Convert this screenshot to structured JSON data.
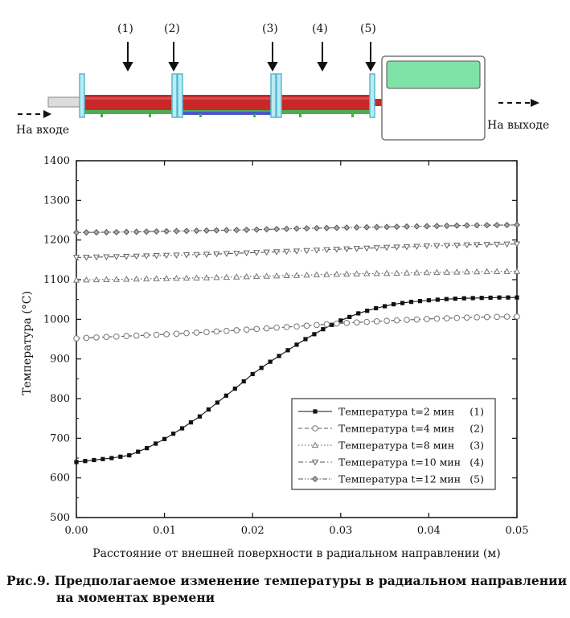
{
  "diagram": {
    "markers": [
      "(1)",
      "(2)",
      "(3)",
      "(4)",
      "(5)"
    ],
    "inlet_label": "На входе",
    "outlet_label": "На выходе"
  },
  "chart_data": {
    "type": "line",
    "xlabel": "Расстояние от внешней поверхности в радиальном направлении (м)",
    "ylabel": "Температура (°C)",
    "xlim": [
      0.0,
      0.05
    ],
    "ylim": [
      500,
      1400
    ],
    "xticks": [
      "0.00",
      "0.01",
      "0.02",
      "0.03",
      "0.04",
      "0.05"
    ],
    "yticks": [
      "500",
      "600",
      "700",
      "800",
      "900",
      "1000",
      "1100",
      "1200",
      "1300",
      "1400"
    ],
    "legend_position": "bottom-right",
    "series": [
      {
        "name": "Температура t=2 мин",
        "tag": "(1)",
        "marker": "square-filled",
        "style": "solid",
        "x": [
          0,
          0.002,
          0.004,
          0.006,
          0.008,
          0.01,
          0.012,
          0.014,
          0.016,
          0.018,
          0.02,
          0.022,
          0.024,
          0.026,
          0.028,
          0.03,
          0.032,
          0.034,
          0.036,
          0.038,
          0.04,
          0.042,
          0.044,
          0.046,
          0.048,
          0.05
        ],
        "y": [
          640,
          645,
          650,
          657,
          675,
          698,
          725,
          755,
          790,
          825,
          862,
          893,
          922,
          950,
          975,
          997,
          1015,
          1028,
          1038,
          1044,
          1048,
          1051,
          1053,
          1054,
          1055,
          1055
        ]
      },
      {
        "name": "Температура t=4 мин",
        "tag": "(2)",
        "marker": "circle-open",
        "style": "dashed",
        "x": [
          0,
          0.005,
          0.01,
          0.015,
          0.02,
          0.025,
          0.03,
          0.035,
          0.04,
          0.045,
          0.05
        ],
        "y": [
          952,
          957,
          962,
          968,
          975,
          982,
          990,
          996,
          1001,
          1005,
          1007
        ]
      },
      {
        "name": "Температура t=8 мин",
        "tag": "(3)",
        "marker": "triangle-up",
        "style": "dotted",
        "x": [
          0,
          0.005,
          0.01,
          0.015,
          0.02,
          0.025,
          0.03,
          0.035,
          0.04,
          0.045,
          0.05
        ],
        "y": [
          1099,
          1101,
          1103,
          1105,
          1108,
          1111,
          1114,
          1116,
          1118,
          1120,
          1121
        ]
      },
      {
        "name": "Температура t=10 мин",
        "tag": "(4)",
        "marker": "triangle-down",
        "style": "dashdot",
        "x": [
          0,
          0.005,
          0.01,
          0.015,
          0.02,
          0.025,
          0.03,
          0.035,
          0.04,
          0.045,
          0.05
        ],
        "y": [
          1156,
          1158,
          1161,
          1164,
          1168,
          1172,
          1177,
          1181,
          1185,
          1188,
          1190
        ]
      },
      {
        "name": "Температура t=12 мин",
        "tag": "(5)",
        "marker": "diamond",
        "style": "dashdotdot",
        "x": [
          0,
          0.005,
          0.01,
          0.015,
          0.02,
          0.025,
          0.03,
          0.035,
          0.04,
          0.045,
          0.05
        ],
        "y": [
          1219,
          1220,
          1222,
          1224,
          1226,
          1229,
          1231,
          1233,
          1235,
          1237,
          1238
        ]
      }
    ]
  },
  "caption": {
    "line1": "Рис.9. Предполагаемое изменение температуры в радиальном направлении",
    "line2": "на моментах времени"
  },
  "colors": {
    "tube": "#c8282a",
    "base": "#4cae4c",
    "flange": "#7fd4e4",
    "chamber": "#7fe2a6",
    "axis": "#111111"
  }
}
